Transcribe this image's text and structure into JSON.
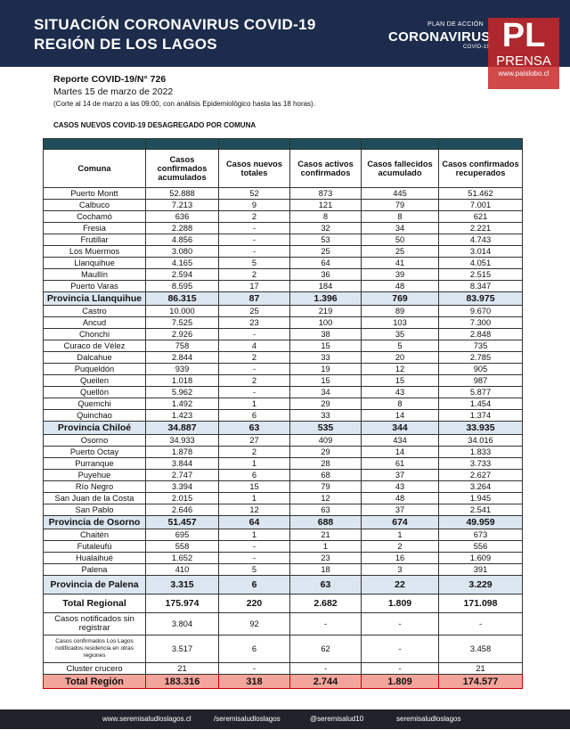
{
  "header": {
    "title": "SITUACIÓN CORONAVIRUS COVID-19",
    "subtitle": "REGIÓN DE LOS LAGOS",
    "logo_top": "PLAN DE ACCIÓN",
    "logo_main": "CORONAVIRUS",
    "logo_sub": "COVID-19"
  },
  "watermark": {
    "mark": "PL",
    "name": "PRENSA",
    "url": "www.paislobo.cl"
  },
  "report": {
    "number": "Reporte COVID-19/N° 726",
    "date": "Martes 15 de marzo  de 2022",
    "note": "(Corte al  14 de marzo a las 09:00, con análisis Epidemiológico hasta las 18 horas).",
    "section_title": "CASOS NUEVOS COVID-19 DESAGREGADO POR COMUNA"
  },
  "table": {
    "columns": [
      "Comuna",
      "Casos confirmados acumulados",
      "Casos nuevos totales",
      "Casos activos confirmados",
      "Casos fallecidos acumulado",
      "Casos confirmados recuperados"
    ],
    "sections": [
      {
        "rows": [
          [
            "Puerto Montt",
            "52.888",
            "52",
            "873",
            "445",
            "51.462"
          ],
          [
            "Calbuco",
            "7.213",
            "9",
            "121",
            "79",
            "7.001"
          ],
          [
            "Cochamó",
            "636",
            "2",
            "8",
            "8",
            "621"
          ],
          [
            "Fresia",
            "2.288",
            "-",
            "32",
            "34",
            "2.221"
          ],
          [
            "Frutillar",
            "4.856",
            "-",
            "53",
            "50",
            "4.743"
          ],
          [
            "Los Muermos",
            "3.080",
            "-",
            "25",
            "25",
            "3.014"
          ],
          [
            "Llanquihue",
            "4.165",
            "5",
            "64",
            "41",
            "4.051"
          ],
          [
            "Maullín",
            "2.594",
            "2",
            "36",
            "39",
            "2.515"
          ],
          [
            "Puerto Varas",
            "8.595",
            "17",
            "184",
            "48",
            "8.347"
          ]
        ],
        "subtotal": [
          "Provincia Llanquihue",
          "86.315",
          "87",
          "1.396",
          "769",
          "83.975"
        ]
      },
      {
        "rows": [
          [
            "Castro",
            "10.000",
            "25",
            "219",
            "89",
            "9.670"
          ],
          [
            "Ancud",
            "7.525",
            "23",
            "100",
            "103",
            "7.300"
          ],
          [
            "Chonchi",
            "2.926",
            "-",
            "38",
            "35",
            "2.848"
          ],
          [
            "Curaco de Vélez",
            "758",
            "4",
            "15",
            "5",
            "735"
          ],
          [
            "Dalcahue",
            "2.844",
            "2",
            "33",
            "20",
            "2.785"
          ],
          [
            "Puqueldón",
            "939",
            "-",
            "19",
            "12",
            "905"
          ],
          [
            "Queilen",
            "1.018",
            "2",
            "15",
            "15",
            "987"
          ],
          [
            "Quellón",
            "5.962",
            "-",
            "34",
            "43",
            "5.877"
          ],
          [
            "Quemchi",
            "1.492",
            "1",
            "29",
            "8",
            "1.454"
          ],
          [
            "Quinchao",
            "1.423",
            "6",
            "33",
            "14",
            "1.374"
          ]
        ],
        "subtotal": [
          "Provincia  Chiloé",
          "34.887",
          "63",
          "535",
          "344",
          "33.935"
        ]
      },
      {
        "rows": [
          [
            "Osorno",
            "34.933",
            "27",
            "409",
            "434",
            "34.016"
          ],
          [
            "Puerto Octay",
            "1.878",
            "2",
            "29",
            "14",
            "1.833"
          ],
          [
            "Purranque",
            "3.844",
            "1",
            "28",
            "61",
            "3.733"
          ],
          [
            "Puyehue",
            "2.747",
            "6",
            "68",
            "37",
            "2.627"
          ],
          [
            "Río Negro",
            "3.394",
            "15",
            "79",
            "43",
            "3.264"
          ],
          [
            "San Juan de la Costa",
            "2.015",
            "1",
            "12",
            "48",
            "1.945"
          ],
          [
            "San Pablo",
            "2.646",
            "12",
            "63",
            "37",
            "2.541"
          ]
        ],
        "subtotal": [
          "Provincia de Osorno",
          "51.457",
          "64",
          "688",
          "674",
          "49.959"
        ]
      },
      {
        "rows": [
          [
            "Chaitén",
            "695",
            "1",
            "21",
            "1",
            "673"
          ],
          [
            "Futaleufú",
            "558",
            "-",
            "1",
            "2",
            "556"
          ],
          [
            "Hualaihué",
            "1.652",
            "-",
            "23",
            "16",
            "1.609"
          ],
          [
            "Palena",
            "410",
            "5",
            "18",
            "3",
            "391"
          ]
        ],
        "subtotal": [
          "Provincia de Palena",
          "3.315",
          "6",
          "63",
          "22",
          "3.229"
        ]
      }
    ],
    "total_regional": [
      "Total Regional",
      "175.974",
      "220",
      "2.682",
      "1.809",
      "171.098"
    ],
    "extra_rows": [
      [
        "Casos notificados sin registrar",
        "3.804",
        "92",
        "-",
        "-",
        "-"
      ],
      [
        "Casos confirmados Los  Lagos notificados  residencia en otras regiones",
        "3.517",
        "6",
        "62",
        "-",
        "3.458"
      ],
      [
        "Cluster crucero",
        "21",
        "-",
        "-",
        "-",
        "21"
      ]
    ],
    "total_region": [
      "Total Región",
      "183.316",
      "318",
      "2.744",
      "1.809",
      "174.577"
    ]
  },
  "footer": {
    "web": "www.seremisaludloslagos.cl",
    "facebook": "/seremisaludloslagos",
    "twitter": "@seremisalud10",
    "instagram": "seremisaludloslagos"
  }
}
